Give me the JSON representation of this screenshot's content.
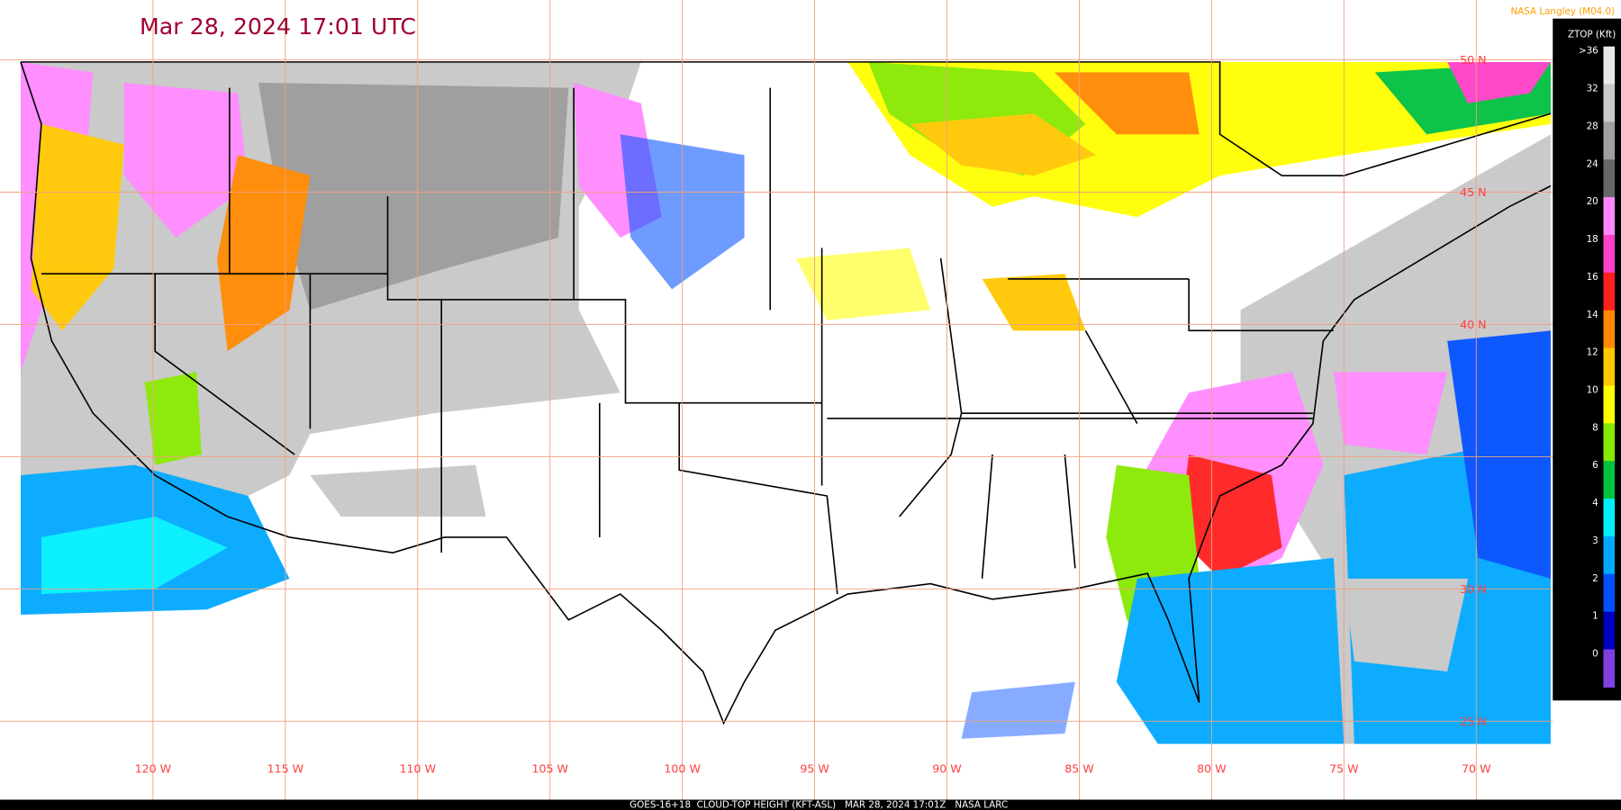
{
  "title": "Mar 28, 2024 17:01 UTC",
  "credit": "NASA Langley (M04.0)",
  "legend": {
    "title": "ZTOP (Kft)",
    "entries": [
      {
        "label": ">36",
        "color": "#e8e8e8"
      },
      {
        "label": "32",
        "color": "#c8c8c8"
      },
      {
        "label": "28",
        "color": "#a0a0a0"
      },
      {
        "label": "24",
        "color": "#686868"
      },
      {
        "label": "20",
        "color": "#ff88ff"
      },
      {
        "label": "18",
        "color": "#ff40c8"
      },
      {
        "label": "16",
        "color": "#ff2020"
      },
      {
        "label": "14",
        "color": "#ff8800"
      },
      {
        "label": "12",
        "color": "#ffc800"
      },
      {
        "label": "10",
        "color": "#ffff00"
      },
      {
        "label": "8",
        "color": "#88e800"
      },
      {
        "label": "6",
        "color": "#00c040"
      },
      {
        "label": "4",
        "color": "#00f0ff"
      },
      {
        "label": "3",
        "color": "#00a8ff"
      },
      {
        "label": "2",
        "color": "#0050ff"
      },
      {
        "label": "1",
        "color": "#0000c0"
      },
      {
        "label": "0",
        "color": "#8040e0"
      }
    ]
  },
  "latitude_labels": [
    "50 N",
    "45 N",
    "40 N",
    "30 N",
    "25 N"
  ],
  "longitude_labels": [
    "120 W",
    "115 W",
    "110 W",
    "105 W",
    "100 W",
    "95 W",
    "90 W",
    "85 W",
    "80 W",
    "75 W",
    "70 W"
  ],
  "footer": "GOES-16+18  CLOUD-TOP HEIGHT (KFT-ASL)   MAR 28, 2024 17:01Z   NASA LARC"
}
